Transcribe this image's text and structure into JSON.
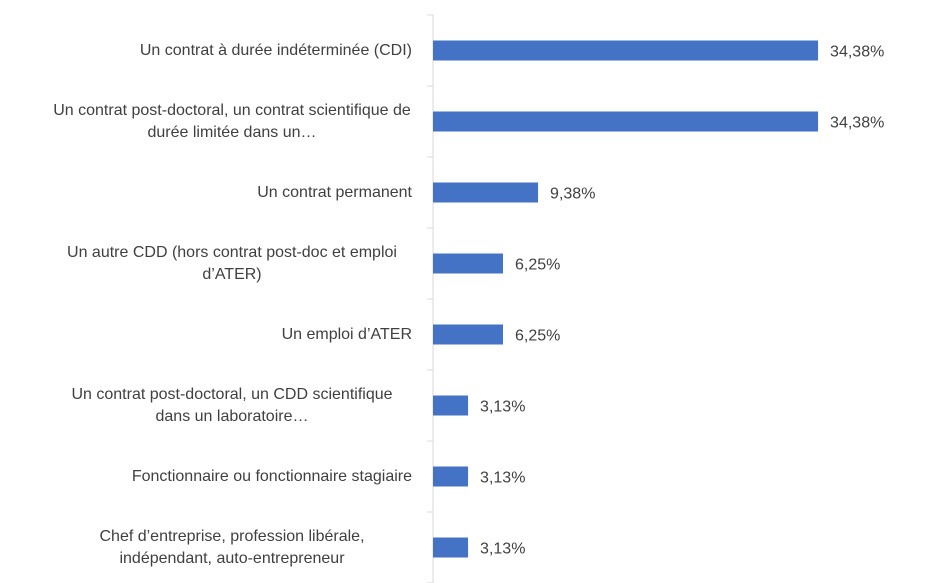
{
  "chart_data": {
    "type": "barh",
    "categories": [
      "Un contrat à durée indéterminée (CDI)",
      "Un contrat post-doctoral, un contrat scientifique de durée limitée dans un…",
      "Un contrat permanent",
      "Un autre CDD (hors contrat post-doc et emploi d’ATER)",
      "Un emploi d’ATER",
      "Un contrat post-doctoral, un CDD scientifique dans un laboratoire…",
      "Fonctionnaire ou fonctionnaire stagiaire",
      "Chef d’entreprise, profession libérale, indépendant, auto-entrepreneur"
    ],
    "values": [
      34.38,
      34.38,
      9.38,
      6.25,
      6.25,
      3.13,
      3.13,
      3.13
    ],
    "value_labels": [
      "34,38%",
      "34,38%",
      "9,38%",
      "6,25%",
      "6,25%",
      "3,13%",
      "3,13%",
      "3,13%"
    ],
    "color": "#4472c4",
    "xlim": [
      0,
      35
    ]
  }
}
